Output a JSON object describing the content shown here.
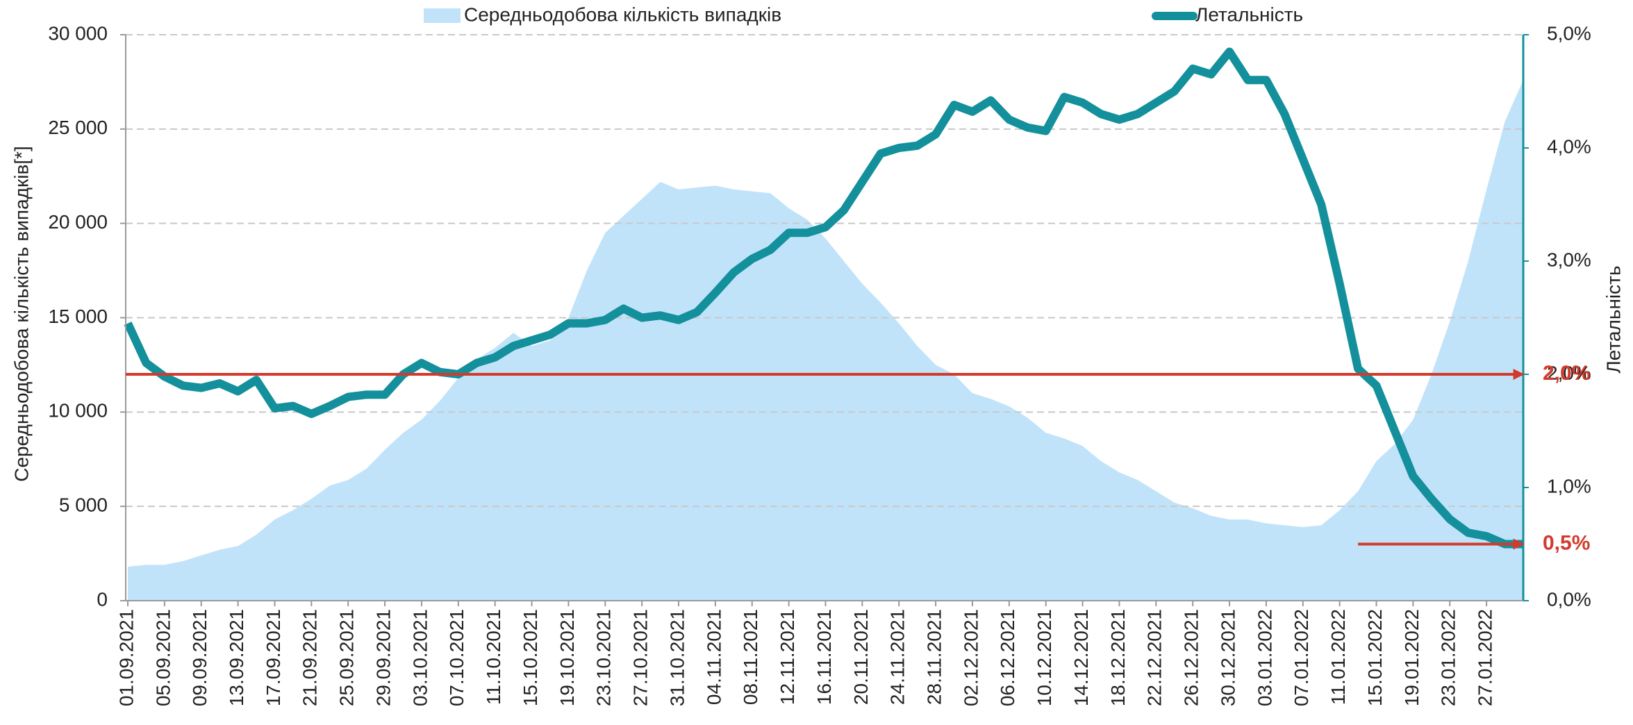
{
  "chart_data": {
    "type": "line",
    "y_label": "Середньодобова кількість випадків[*]",
    "y2_label": "Летальність",
    "categories": [
      "01.09.2021",
      null,
      "05.09.2021",
      null,
      "09.09.2021",
      null,
      "13.09.2021",
      null,
      "17.09.2021",
      null,
      "21.09.2021",
      null,
      "25.09.2021",
      null,
      "29.09.2021",
      null,
      "03.10.2021",
      null,
      "07.10.2021",
      null,
      "11.10.2021",
      null,
      "15.10.2021",
      null,
      "19.10.2021",
      null,
      "23.10.2021",
      null,
      "27.10.2021",
      null,
      "31.10.2021",
      null,
      "04.11.2021",
      null,
      "08.11.2021",
      null,
      "12.11.2021",
      null,
      "16.11.2021",
      null,
      "20.11.2021",
      null,
      "24.11.2021",
      null,
      "28.11.2021",
      null,
      "02.12.2021",
      null,
      "06.12.2021",
      null,
      "10.12.2021",
      null,
      "14.12.2021",
      null,
      "18.12.2021",
      null,
      "22.12.2021",
      null,
      "26.12.2021",
      null,
      "30.12.2021",
      null,
      "03.01.2022",
      null,
      "07.01.2022",
      null,
      "11.01.2022",
      null,
      "15.01.2022",
      null,
      "19.01.2022",
      null,
      "23.01.2022",
      null,
      "27.01.2022",
      null,
      null
    ],
    "series": [
      {
        "name": "Середньодобова кількість випадків",
        "type": "area",
        "color": "#c1e3fa",
        "values": [
          1800,
          1900,
          1900,
          2100,
          2400,
          2700,
          2900,
          3500,
          4300,
          4800,
          5400,
          6100,
          6400,
          7000,
          8000,
          8900,
          9600,
          10600,
          11800,
          12800,
          13400,
          14200,
          13500,
          13800,
          15000,
          17500,
          19500,
          20400,
          21300,
          22200,
          21800,
          21900,
          22000,
          21800,
          21700,
          21600,
          20800,
          20200,
          19200,
          18000,
          16800,
          15800,
          14700,
          13500,
          12500,
          12000,
          11000,
          10700,
          10300,
          9700,
          8900,
          8600,
          8200,
          7400,
          6800,
          6400,
          5800,
          5200,
          4900,
          4500,
          4300,
          4300,
          4100,
          4000,
          3900,
          4000,
          4800,
          5800,
          7400,
          8300,
          9600,
          12000,
          14800,
          18000,
          21800,
          25400,
          27600
        ]
      },
      {
        "name": "Летальність",
        "type": "line",
        "axis": "y2",
        "color": "#13909b",
        "values": [
          2.45,
          2.1,
          1.98,
          1.9,
          1.88,
          1.92,
          1.85,
          1.95,
          1.7,
          1.72,
          1.65,
          1.72,
          1.8,
          1.82,
          1.82,
          2.0,
          2.1,
          2.02,
          2.0,
          2.1,
          2.15,
          2.25,
          2.3,
          2.35,
          2.45,
          2.45,
          2.48,
          2.58,
          2.5,
          2.52,
          2.48,
          2.55,
          2.72,
          2.9,
          3.02,
          3.1,
          3.25,
          3.25,
          3.3,
          3.45,
          3.7,
          3.95,
          4.0,
          4.02,
          4.12,
          4.38,
          4.32,
          4.42,
          4.25,
          4.18,
          4.15,
          4.45,
          4.4,
          4.3,
          4.25,
          4.3,
          4.4,
          4.5,
          4.7,
          4.65,
          4.85,
          4.6,
          4.6,
          4.3,
          3.9,
          3.5,
          2.8,
          2.05,
          1.9,
          1.5,
          1.1,
          0.9,
          0.72,
          0.6,
          0.57,
          0.5,
          0.5
        ]
      }
    ],
    "ylim": [
      0,
      30000
    ],
    "yticks": [
      0,
      {
        "value": 5000,
        "label": "5 000"
      },
      {
        "value": 10000,
        "label": "10 000"
      },
      {
        "value": 15000,
        "label": "15 000"
      },
      {
        "value": 20000,
        "label": "20 000"
      },
      {
        "value": 25000,
        "label": "25 000"
      },
      {
        "value": 30000,
        "label": "30 000"
      }
    ],
    "y2lim": [
      0,
      5
    ],
    "y2ticks": [
      {
        "value": 0,
        "label": "0,0%"
      },
      {
        "value": 1,
        "label": "1,0%"
      },
      {
        "value": 2,
        "label": "2,0%"
      },
      {
        "value": 3,
        "label": "3,0%"
      },
      {
        "value": 4,
        "label": "4,0%"
      },
      {
        "value": 5,
        "label": "5,0%"
      }
    ],
    "grid": true,
    "legend": "top",
    "reference_lines": [
      {
        "value": 2,
        "label": "2,0%",
        "color": "#d33a2c"
      },
      {
        "value": 0.5,
        "label": "0,5%",
        "color": "#d33a2c"
      }
    ]
  }
}
